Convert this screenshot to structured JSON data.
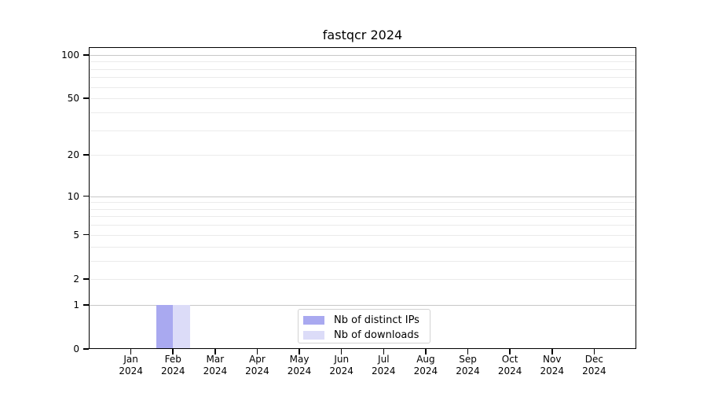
{
  "chart_data": {
    "type": "bar",
    "title": "fastqcr 2024",
    "x_categories": [
      "Jan",
      "Feb",
      "Mar",
      "Apr",
      "May",
      "Jun",
      "Jul",
      "Aug",
      "Sep",
      "Oct",
      "Nov",
      "Dec"
    ],
    "x_year": "2024",
    "series": [
      {
        "name": "Nb of distinct IPs",
        "color": "#a9a9f0",
        "values": [
          0,
          1,
          0,
          0,
          0,
          0,
          0,
          0,
          0,
          0,
          0,
          0
        ]
      },
      {
        "name": "Nb of downloads",
        "color": "#dcdcf8",
        "values": [
          0,
          1,
          0,
          0,
          0,
          0,
          0,
          0,
          0,
          0,
          0,
          0
        ]
      }
    ],
    "y_scale": "log1p",
    "ylim": [
      0,
      113
    ],
    "y_tick_values": [
      0,
      1,
      2,
      5,
      10,
      20,
      50,
      100
    ],
    "y_major_gridlines": [
      1,
      10,
      100
    ],
    "y_minor_gridlines": [
      2,
      3,
      4,
      5,
      6,
      7,
      8,
      9,
      20,
      30,
      40,
      50,
      60,
      70,
      80,
      90
    ],
    "grid": "horizontal",
    "legend_position": "lower center inside plot"
  },
  "colors": {
    "background": "#ffffff",
    "axis": "#000000",
    "major_gridline": "#c8c8c8",
    "minor_gridline": "#ebebeb"
  }
}
